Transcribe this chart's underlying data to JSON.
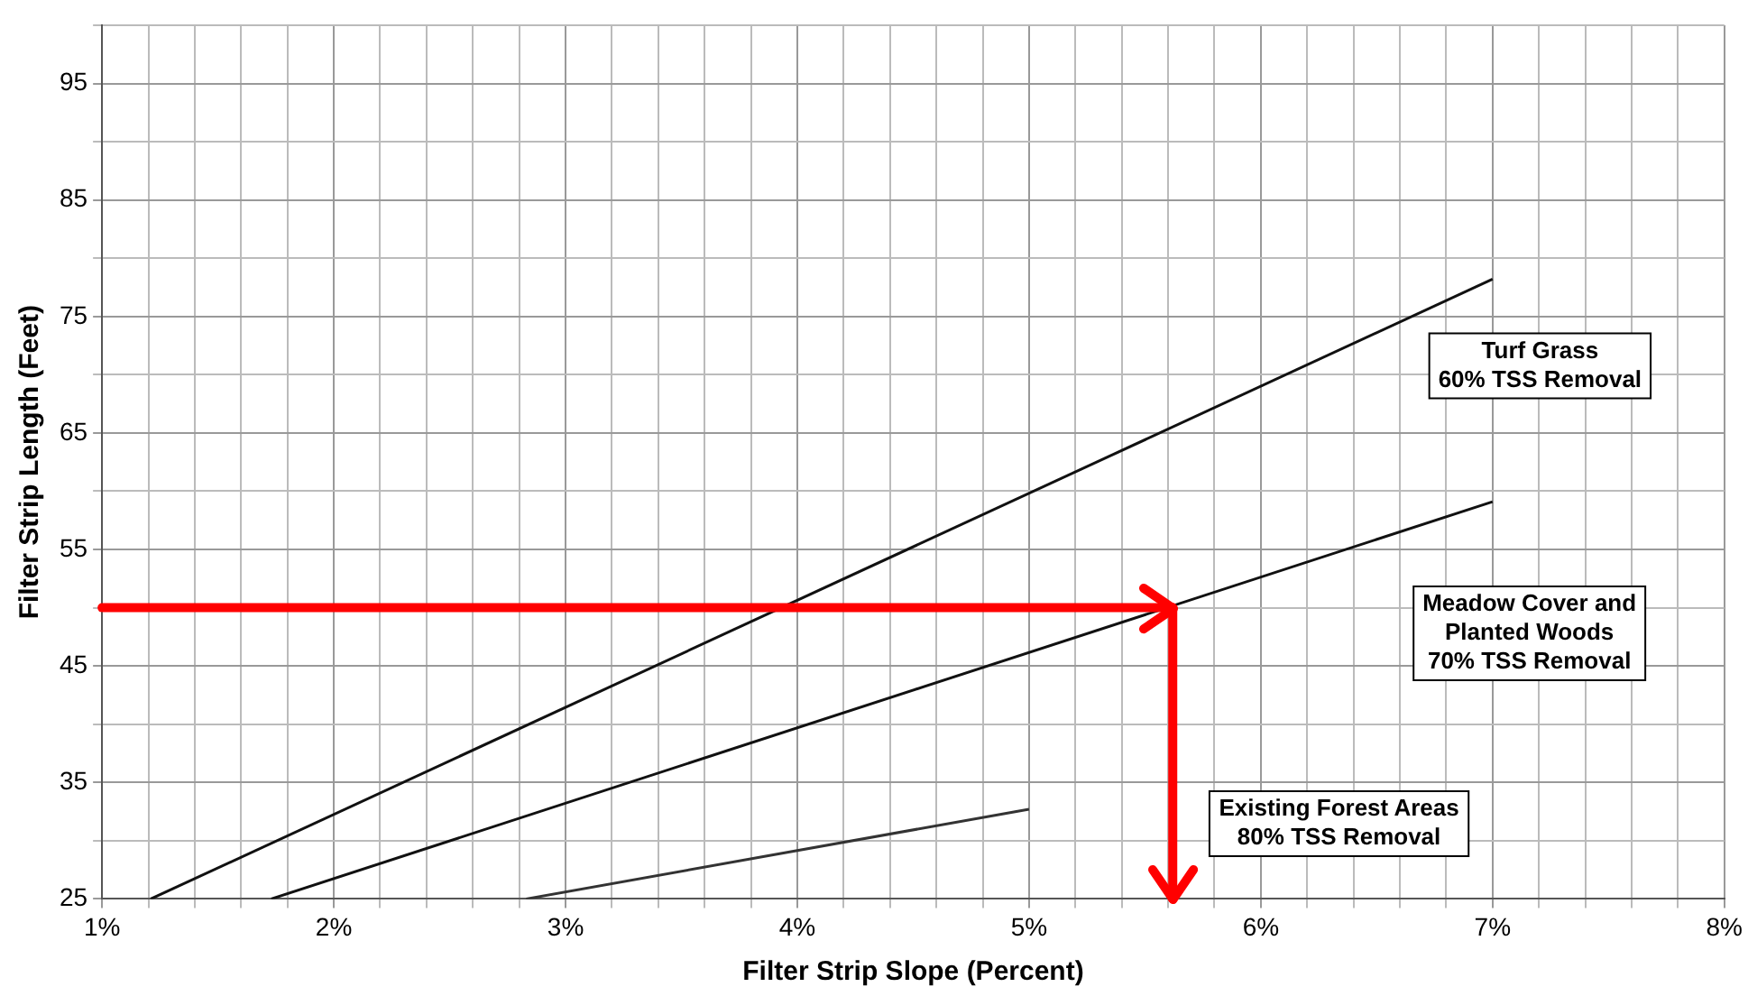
{
  "chart_data": {
    "type": "line",
    "xlabel": "Filter Strip Slope (Percent)",
    "ylabel": "Filter Strip Length (Feet)",
    "xlim": [
      1,
      8
    ],
    "ylim": [
      25,
      100
    ],
    "xticks": [
      {
        "value": 1,
        "label": "1%"
      },
      {
        "value": 1.2,
        "label": null
      },
      {
        "value": 1.4,
        "label": null
      },
      {
        "value": 1.6,
        "label": null
      },
      {
        "value": 1.8,
        "label": null
      },
      {
        "value": 2,
        "label": "2%"
      },
      {
        "value": 2.2,
        "label": null
      },
      {
        "value": 2.4,
        "label": null
      },
      {
        "value": 2.6,
        "label": null
      },
      {
        "value": 2.8,
        "label": null
      },
      {
        "value": 3,
        "label": "3%"
      },
      {
        "value": 3.2,
        "label": null
      },
      {
        "value": 3.4,
        "label": null
      },
      {
        "value": 3.6,
        "label": null
      },
      {
        "value": 3.8,
        "label": null
      },
      {
        "value": 4,
        "label": "4%"
      },
      {
        "value": 4.2,
        "label": null
      },
      {
        "value": 4.4,
        "label": null
      },
      {
        "value": 4.6,
        "label": null
      },
      {
        "value": 4.8,
        "label": null
      },
      {
        "value": 5,
        "label": "5%"
      },
      {
        "value": 5.2,
        "label": null
      },
      {
        "value": 5.4,
        "label": null
      },
      {
        "value": 5.6,
        "label": null
      },
      {
        "value": 5.8,
        "label": null
      },
      {
        "value": 6,
        "label": "6%"
      },
      {
        "value": 6.2,
        "label": null
      },
      {
        "value": 6.4,
        "label": null
      },
      {
        "value": 6.6,
        "label": null
      },
      {
        "value": 6.8,
        "label": null
      },
      {
        "value": 7,
        "label": "7%"
      },
      {
        "value": 7.2,
        "label": null
      },
      {
        "value": 7.4,
        "label": null
      },
      {
        "value": 7.6,
        "label": null
      },
      {
        "value": 7.8,
        "label": null
      },
      {
        "value": 8,
        "label": "8%"
      }
    ],
    "yticks": [
      25,
      {
        "value": 30,
        "label": null
      },
      35,
      {
        "value": 40,
        "label": null
      },
      45,
      {
        "value": 50,
        "label": null
      },
      55,
      {
        "value": 60,
        "label": null
      },
      65,
      {
        "value": 70,
        "label": null
      },
      75,
      {
        "value": 80,
        "label": null
      },
      85,
      {
        "value": 90,
        "label": null
      },
      95,
      {
        "value": 100,
        "label": null
      }
    ],
    "grid": true,
    "legend": false,
    "marker": "none",
    "line_style": "solid",
    "series": [
      {
        "color": "#111111",
        "x": [
          1.21,
          7
        ],
        "values": [
          25,
          78.2
        ]
      },
      {
        "color": "#111111",
        "x": [
          1.73,
          7
        ],
        "values": [
          25,
          59.1
        ]
      },
      {
        "color": "#333333",
        "x": [
          2.83,
          5
        ],
        "values": [
          25,
          32.7
        ]
      }
    ],
    "ref_lines": [
      {
        "axis": "y",
        "value": 50,
        "color": "#ff0000"
      },
      {
        "axis": "x",
        "value": 5.62,
        "color": "#ff0000"
      }
    ],
    "annotations": [
      "Turf Grass\n60% TSS Removal",
      "Meadow Cover and\nPlanted Woods\n70% TSS Removal",
      "Existing Forest Areas\n80% TSS Removal"
    ]
  }
}
